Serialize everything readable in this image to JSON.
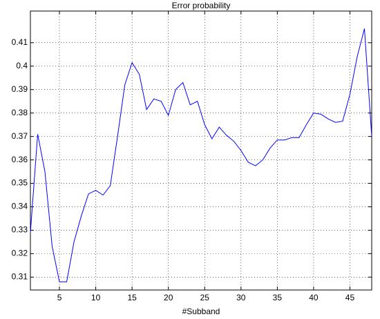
{
  "chart_data": {
    "type": "line",
    "title": "Error probability",
    "x_label": "#Subband",
    "x": [
      1,
      2,
      3,
      4,
      5,
      6,
      7,
      8,
      9,
      10,
      11,
      12,
      13,
      14,
      15,
      16,
      17,
      18,
      19,
      20,
      21,
      22,
      23,
      24,
      25,
      26,
      27,
      28,
      29,
      30,
      31,
      32,
      33,
      34,
      35,
      36,
      37,
      38,
      39,
      40,
      41,
      42,
      43,
      44,
      45,
      46,
      47,
      48
    ],
    "series": [
      {
        "color": "#0000ff",
        "values": [
          0.329,
          0.371,
          0.355,
          0.323,
          0.308,
          0.308,
          0.325,
          0.336,
          0.3455,
          0.347,
          0.345,
          0.349,
          0.37,
          0.392,
          0.4015,
          0.3965,
          0.3815,
          0.386,
          0.385,
          0.379,
          0.39,
          0.393,
          0.3835,
          0.385,
          0.375,
          0.369,
          0.374,
          0.3705,
          0.368,
          0.364,
          0.359,
          0.3575,
          0.36,
          0.365,
          0.3685,
          0.3685,
          0.3695,
          0.3695,
          0.375,
          0.38,
          0.3795,
          0.3775,
          0.376,
          0.3765,
          0.388,
          0.404,
          0.416,
          0.37
        ]
      }
    ],
    "xlim": [
      1,
      48
    ],
    "xticks": [
      5,
      10,
      15,
      20,
      25,
      30,
      35,
      40,
      45
    ],
    "ylim": [
      0.3045,
      0.4235
    ],
    "yticks": [
      0.31,
      0.32,
      0.33,
      0.34,
      0.35,
      0.36,
      0.37,
      0.38,
      0.39,
      0.4,
      0.41
    ],
    "grid": true
  }
}
